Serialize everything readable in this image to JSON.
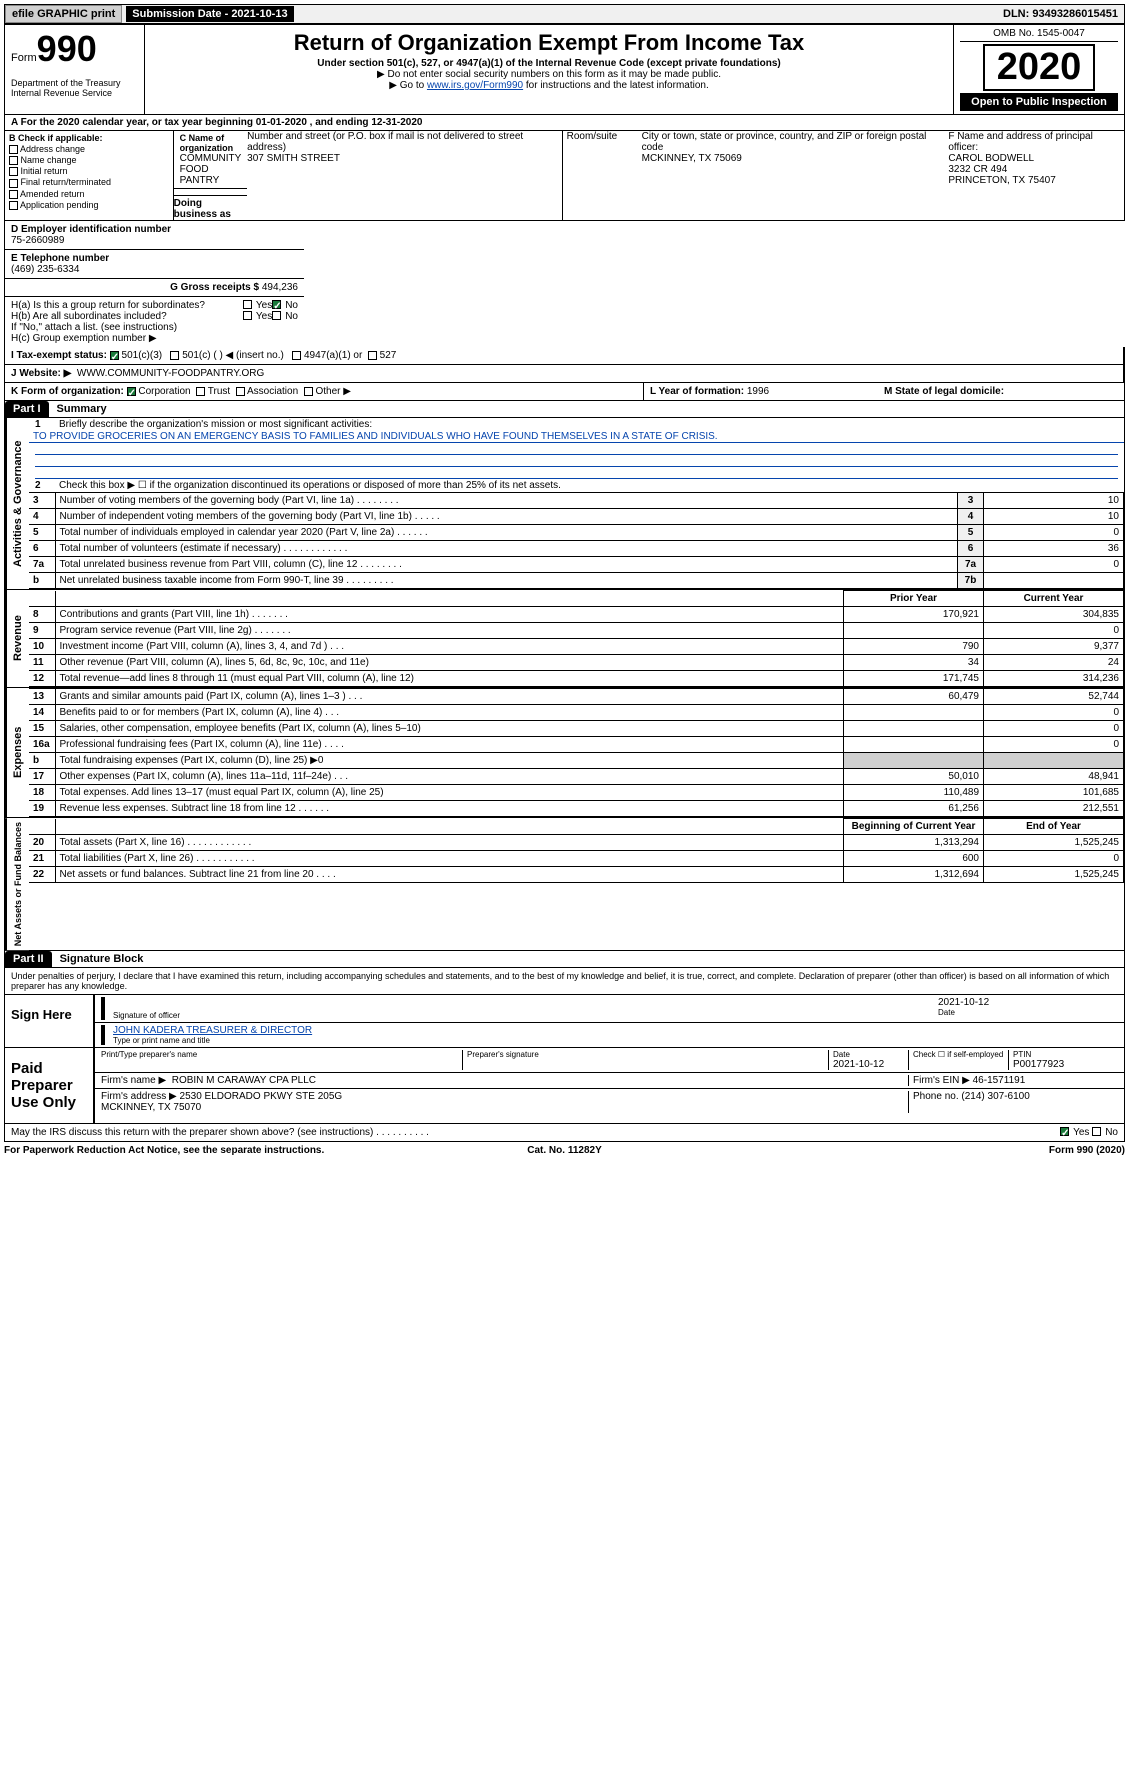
{
  "topbar": {
    "efile": "efile GRAPHIC print",
    "submission_label": "Submission Date - 2021-10-13",
    "dln": "DLN: 93493286015451"
  },
  "header": {
    "form_word": "Form",
    "form_num": "990",
    "title": "Return of Organization Exempt From Income Tax",
    "subtitle1": "Under section 501(c), 527, or 4947(a)(1) of the Internal Revenue Code (except private foundations)",
    "subtitle2": "▶ Do not enter social security numbers on this form as it may be made public.",
    "subtitle3_pre": "▶ Go to ",
    "subtitle3_link": "www.irs.gov/Form990",
    "subtitle3_post": " for instructions and the latest information.",
    "omb": "OMB No. 1545-0047",
    "year": "2020",
    "open": "Open to Public Inspection",
    "dept": "Department of the Treasury\nInternal Revenue Service"
  },
  "period": "A For the 2020 calendar year, or tax year beginning 01-01-2020    , and ending 12-31-2020",
  "boxB": {
    "label": "B Check if applicable:",
    "items": [
      "Address change",
      "Name change",
      "Initial return",
      "Final return/terminated",
      "Amended return",
      "Application pending"
    ]
  },
  "boxC": {
    "name_label": "C Name of organization",
    "name": "COMMUNITY FOOD PANTRY",
    "dba_label": "Doing business as",
    "street_label": "Number and street (or P.O. box if mail is not delivered to street address)",
    "room_label": "Room/suite",
    "street": "307 SMITH STREET",
    "city_label": "City or town, state or province, country, and ZIP or foreign postal code",
    "city": "MCKINNEY, TX  75069",
    "officer_label": "F  Name and address of principal officer:",
    "officer_name": "CAROL BODWELL",
    "officer_addr1": "3232 CR 494",
    "officer_addr2": "PRINCETON, TX  75407"
  },
  "boxD": {
    "label": "D Employer identification number",
    "value": "75-2660989"
  },
  "boxE": {
    "label": "E Telephone number",
    "value": "(469) 235-6334"
  },
  "boxG": {
    "label": "G Gross receipts $",
    "value": "494,236"
  },
  "boxH": {
    "a": "H(a)  Is this a group return for subordinates?",
    "b": "H(b)  Are all subordinates included?",
    "ifno": "If \"No,\" attach a list. (see instructions)",
    "c": "H(c)  Group exemption number ▶"
  },
  "boxI": {
    "label": "I    Tax-exempt status:",
    "c3": "501(c)(3)",
    "c": "501(c) (   ) ◀ (insert no.)",
    "a1": "4947(a)(1) or",
    "n527": "527"
  },
  "boxJ": {
    "label": "J    Website: ▶",
    "value": "WWW.COMMUNITY-FOODPANTRY.ORG"
  },
  "boxK": {
    "label": "K Form of organization:",
    "corp": "Corporation",
    "trust": "Trust",
    "assoc": "Association",
    "other": "Other ▶"
  },
  "boxL": {
    "label": "L Year of formation:",
    "value": "1996"
  },
  "boxM": {
    "label": "M State of legal domicile:",
    "value": ""
  },
  "part1": {
    "tab": "Part I",
    "title": "Summary",
    "l1": "Briefly describe the organization's mission or most significant activities:",
    "mission": "TO PROVIDE GROCERIES ON AN EMERGENCY BASIS TO FAMILIES AND INDIVIDUALS WHO HAVE FOUND THEMSELVES IN A STATE OF CRISIS.",
    "l2": "Check this box ▶ ☐  if the organization discontinued its operations or disposed of more than 25% of its net assets.",
    "governance_lines": [
      {
        "n": "3",
        "t": "Number of voting members of the governing body (Part VI, line 1a)   .    .    .    .    .    .    .    .",
        "box": "3",
        "v": "10"
      },
      {
        "n": "4",
        "t": "Number of independent voting members of the governing body (Part VI, line 1b)   .    .    .    .    .",
        "box": "4",
        "v": "10"
      },
      {
        "n": "5",
        "t": "Total number of individuals employed in calendar year 2020 (Part V, line 2a)   .    .    .    .    .    .",
        "box": "5",
        "v": "0"
      },
      {
        "n": "6",
        "t": "Total number of volunteers (estimate if necessary)   .    .    .    .    .    .    .    .    .    .    .    .",
        "box": "6",
        "v": "36"
      },
      {
        "n": "7a",
        "t": "Total unrelated business revenue from Part VIII, column (C), line 12   .    .    .    .    .    .    .    .",
        "box": "7a",
        "v": "0"
      },
      {
        "n": "b",
        "t": "Net unrelated business taxable income from Form 990-T, line 39   .    .    .    .    .    .    .    .    .",
        "box": "7b",
        "v": ""
      }
    ],
    "col_prior": "Prior Year",
    "col_current": "Current Year",
    "revenue": [
      {
        "n": "8",
        "t": "Contributions and grants (Part VIII, line 1h)   .    .    .    .    .    .    .",
        "p": "170,921",
        "c": "304,835"
      },
      {
        "n": "9",
        "t": "Program service revenue (Part VIII, line 2g)   .    .    .    .    .    .    .",
        "p": "",
        "c": "0"
      },
      {
        "n": "10",
        "t": "Investment income (Part VIII, column (A), lines 3, 4, and 7d )   .    .    .",
        "p": "790",
        "c": "9,377"
      },
      {
        "n": "11",
        "t": "Other revenue (Part VIII, column (A), lines 5, 6d, 8c, 9c, 10c, and 11e)",
        "p": "34",
        "c": "24"
      },
      {
        "n": "12",
        "t": "Total revenue—add lines 8 through 11 (must equal Part VIII, column (A), line 12)",
        "p": "171,745",
        "c": "314,236"
      }
    ],
    "expenses": [
      {
        "n": "13",
        "t": "Grants and similar amounts paid (Part IX, column (A), lines 1–3 )   .    .    .",
        "p": "60,479",
        "c": "52,744"
      },
      {
        "n": "14",
        "t": "Benefits paid to or for members (Part IX, column (A), line 4)   .    .    .",
        "p": "",
        "c": "0"
      },
      {
        "n": "15",
        "t": "Salaries, other compensation, employee benefits (Part IX, column (A), lines 5–10)",
        "p": "",
        "c": "0"
      },
      {
        "n": "16a",
        "t": "Professional fundraising fees (Part IX, column (A), line 11e)   .    .    .    .",
        "p": "",
        "c": "0"
      },
      {
        "n": "b",
        "t": "Total fundraising expenses (Part IX, column (D), line 25) ▶0",
        "p": "grey",
        "c": "grey"
      },
      {
        "n": "17",
        "t": "Other expenses (Part IX, column (A), lines 11a–11d, 11f–24e)   .    .    .",
        "p": "50,010",
        "c": "48,941"
      },
      {
        "n": "18",
        "t": "Total expenses. Add lines 13–17 (must equal Part IX, column (A), line 25)",
        "p": "110,489",
        "c": "101,685"
      },
      {
        "n": "19",
        "t": "Revenue less expenses. Subtract line 18 from line 12   .    .    .    .    .    .",
        "p": "61,256",
        "c": "212,551"
      }
    ],
    "col_begin": "Beginning of Current Year",
    "col_end": "End of Year",
    "assets": [
      {
        "n": "20",
        "t": "Total assets (Part X, line 16)   .    .    .    .    .    .    .    .    .    .    .    .",
        "p": "1,313,294",
        "c": "1,525,245"
      },
      {
        "n": "21",
        "t": "Total liabilities (Part X, line 26)   .    .    .    .    .    .    .    .    .    .    .",
        "p": "600",
        "c": "0"
      },
      {
        "n": "22",
        "t": "Net assets or fund balances. Subtract line 21 from line 20   .    .    .    .",
        "p": "1,312,694",
        "c": "1,525,245"
      }
    ],
    "vtabs": {
      "gov": "Activities & Governance",
      "rev": "Revenue",
      "exp": "Expenses",
      "net": "Net Assets or Fund Balances"
    }
  },
  "part2": {
    "tab": "Part II",
    "title": "Signature Block",
    "perjury": "Under penalties of perjury, I declare that I have examined this return, including accompanying schedules and statements, and to the best of my knowledge and belief, it is true, correct, and complete. Declaration of preparer (other than officer) is based on all information of which preparer has any knowledge.",
    "sign_here": "Sign Here",
    "sig_officer": "Signature of officer",
    "sig_date": "2021-10-12",
    "date_lbl": "Date",
    "officer_name": "JOHN KADERA  TREASURER & DIRECTOR",
    "type_name": "Type or print name and title",
    "paid": "Paid Preparer Use Only",
    "pt_name_lbl": "Print/Type preparer's name",
    "pt_sig_lbl": "Preparer's signature",
    "pt_date_lbl": "Date",
    "pt_date": "2021-10-12",
    "pt_check": "Check ☐ if self-employed",
    "ptin_lbl": "PTIN",
    "ptin": "P00177923",
    "firm_name_lbl": "Firm's name     ▶",
    "firm_name": "ROBIN M CARAWAY CPA PLLC",
    "firm_ein_lbl": "Firm's EIN ▶",
    "firm_ein": "46-1571191",
    "firm_addr_lbl": "Firm's address ▶",
    "firm_addr": "2530 ELDORADO PKWY STE 205G\nMCKINNEY, TX   75070",
    "firm_phone_lbl": "Phone no.",
    "firm_phone": "(214) 307-6100",
    "discuss": "May the IRS discuss this return with the preparer shown above? (see instructions)    .    .    .    .    .    .    .    .    .    ."
  },
  "footer": {
    "left": "For Paperwork Reduction Act Notice, see the separate instructions.",
    "mid": "Cat. No. 11282Y",
    "right": "Form 990 (2020)"
  },
  "yes": "Yes",
  "no": "No",
  "colors": {
    "link": "#0645ad",
    "check": "#1a7a3a"
  }
}
